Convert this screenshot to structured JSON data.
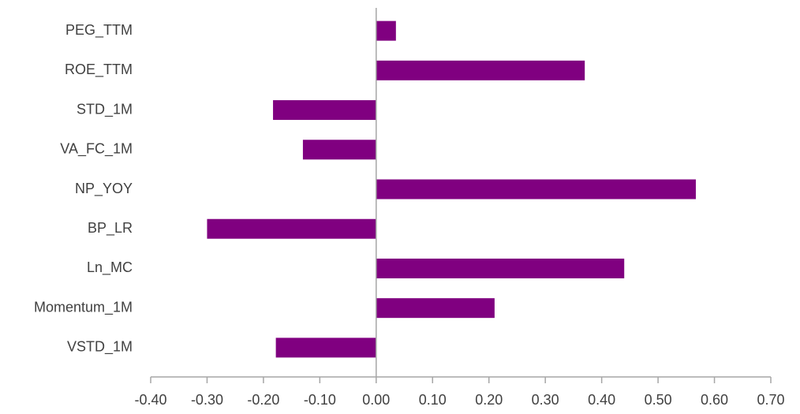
{
  "chart_data": {
    "type": "bar",
    "orientation": "horizontal",
    "categories": [
      "PEG_TTM",
      "ROE_TTM",
      "STD_1M",
      "VA_FC_1M",
      "NP_YOY",
      "BP_LR",
      "Ln_MC",
      "Momentum_1M",
      "VSTD_1M"
    ],
    "values": [
      0.035,
      0.37,
      -0.183,
      -0.13,
      0.567,
      -0.3,
      0.44,
      0.21,
      -0.178
    ],
    "color": "#800080",
    "xlim": [
      -0.4,
      0.7
    ],
    "xticks": [
      {
        "value": -0.4,
        "label": "-0.40"
      },
      {
        "value": -0.3,
        "label": "-0.30"
      },
      {
        "value": -0.2,
        "label": "-0.20"
      },
      {
        "value": -0.1,
        "label": "-0.10"
      },
      {
        "value": 0,
        "label": "0.00"
      },
      {
        "value": 0.1,
        "label": "0.10"
      },
      {
        "value": 0.2,
        "label": "0.20"
      },
      {
        "value": 0.3,
        "label": "0.30"
      },
      {
        "value": 0.4,
        "label": "0.40"
      },
      {
        "value": 0.5,
        "label": "0.50"
      },
      {
        "value": 0.6,
        "label": "0.60"
      },
      {
        "value": 0.7,
        "label": "0.70"
      }
    ],
    "grid": false
  }
}
